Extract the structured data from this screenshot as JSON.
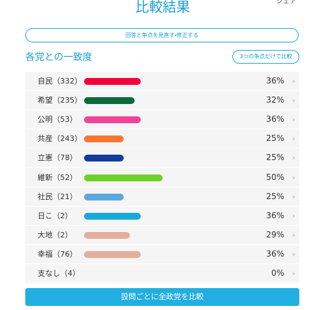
{
  "header": {
    "title": "比較結果",
    "share": "シェア"
  },
  "review_button": "回答と争点を見直す・修正する",
  "section": {
    "title": "各党との一致度",
    "filter_button": "3つの争点だけで比較"
  },
  "rows": [
    {
      "name": "自民（332）",
      "value": 36,
      "value_label": "36%",
      "color": "#f2003d"
    },
    {
      "name": "希望（235）",
      "value": 32,
      "value_label": "32%",
      "color": "#0c6b3a"
    },
    {
      "name": "公明（53）",
      "value": 36,
      "value_label": "36%",
      "color": "#f0449b"
    },
    {
      "name": "共産（243）",
      "value": 25,
      "value_label": "25%",
      "color": "#f8762e"
    },
    {
      "name": "立憲（78）",
      "value": 25,
      "value_label": "25%",
      "color": "#123c9a"
    },
    {
      "name": "維新（52）",
      "value": 50,
      "value_label": "50%",
      "color": "#6ed12a"
    },
    {
      "name": "社民（21）",
      "value": 25,
      "value_label": "25%",
      "color": "#5ba7e0"
    },
    {
      "name": "日こ（2）",
      "value": 36,
      "value_label": "36%",
      "color": "#16aad8"
    },
    {
      "name": "大地（2）",
      "value": 29,
      "value_label": "29%",
      "color": "#e4ae9c"
    },
    {
      "name": "幸福（76）",
      "value": 36,
      "value_label": "36%",
      "color": "#e4ae9c"
    },
    {
      "name": "支なし（4）",
      "value": 0,
      "value_label": "0%",
      "color": "#cccccc"
    }
  ],
  "compare_button": "設問ごとに全政党を比較"
}
